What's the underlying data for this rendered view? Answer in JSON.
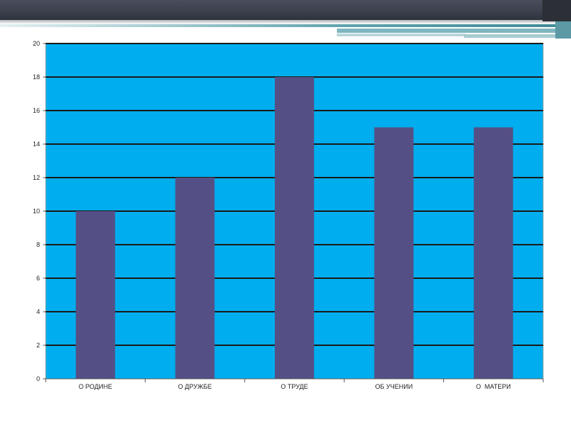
{
  "colors": {
    "plot_background": "#00aeef",
    "bar_fill": "#545086",
    "grid_line": "#1a1a1a",
    "header_bar": "#3c404c",
    "accent": "#5fa3ad"
  },
  "chart_data": {
    "type": "bar",
    "categories": [
      "О РОДИНЕ",
      "О ДРУЖБЕ",
      "О ТРУДЕ",
      "ОБ УЧЕНИИ",
      "О  МАТЕРИ"
    ],
    "values": [
      10,
      12,
      18,
      15,
      15
    ],
    "ylim": [
      0,
      20
    ],
    "yticks": [
      0,
      2,
      4,
      6,
      8,
      10,
      12,
      14,
      16,
      18,
      20
    ],
    "title": "",
    "xlabel": "",
    "ylabel": "",
    "grid": true,
    "legend": "none"
  }
}
